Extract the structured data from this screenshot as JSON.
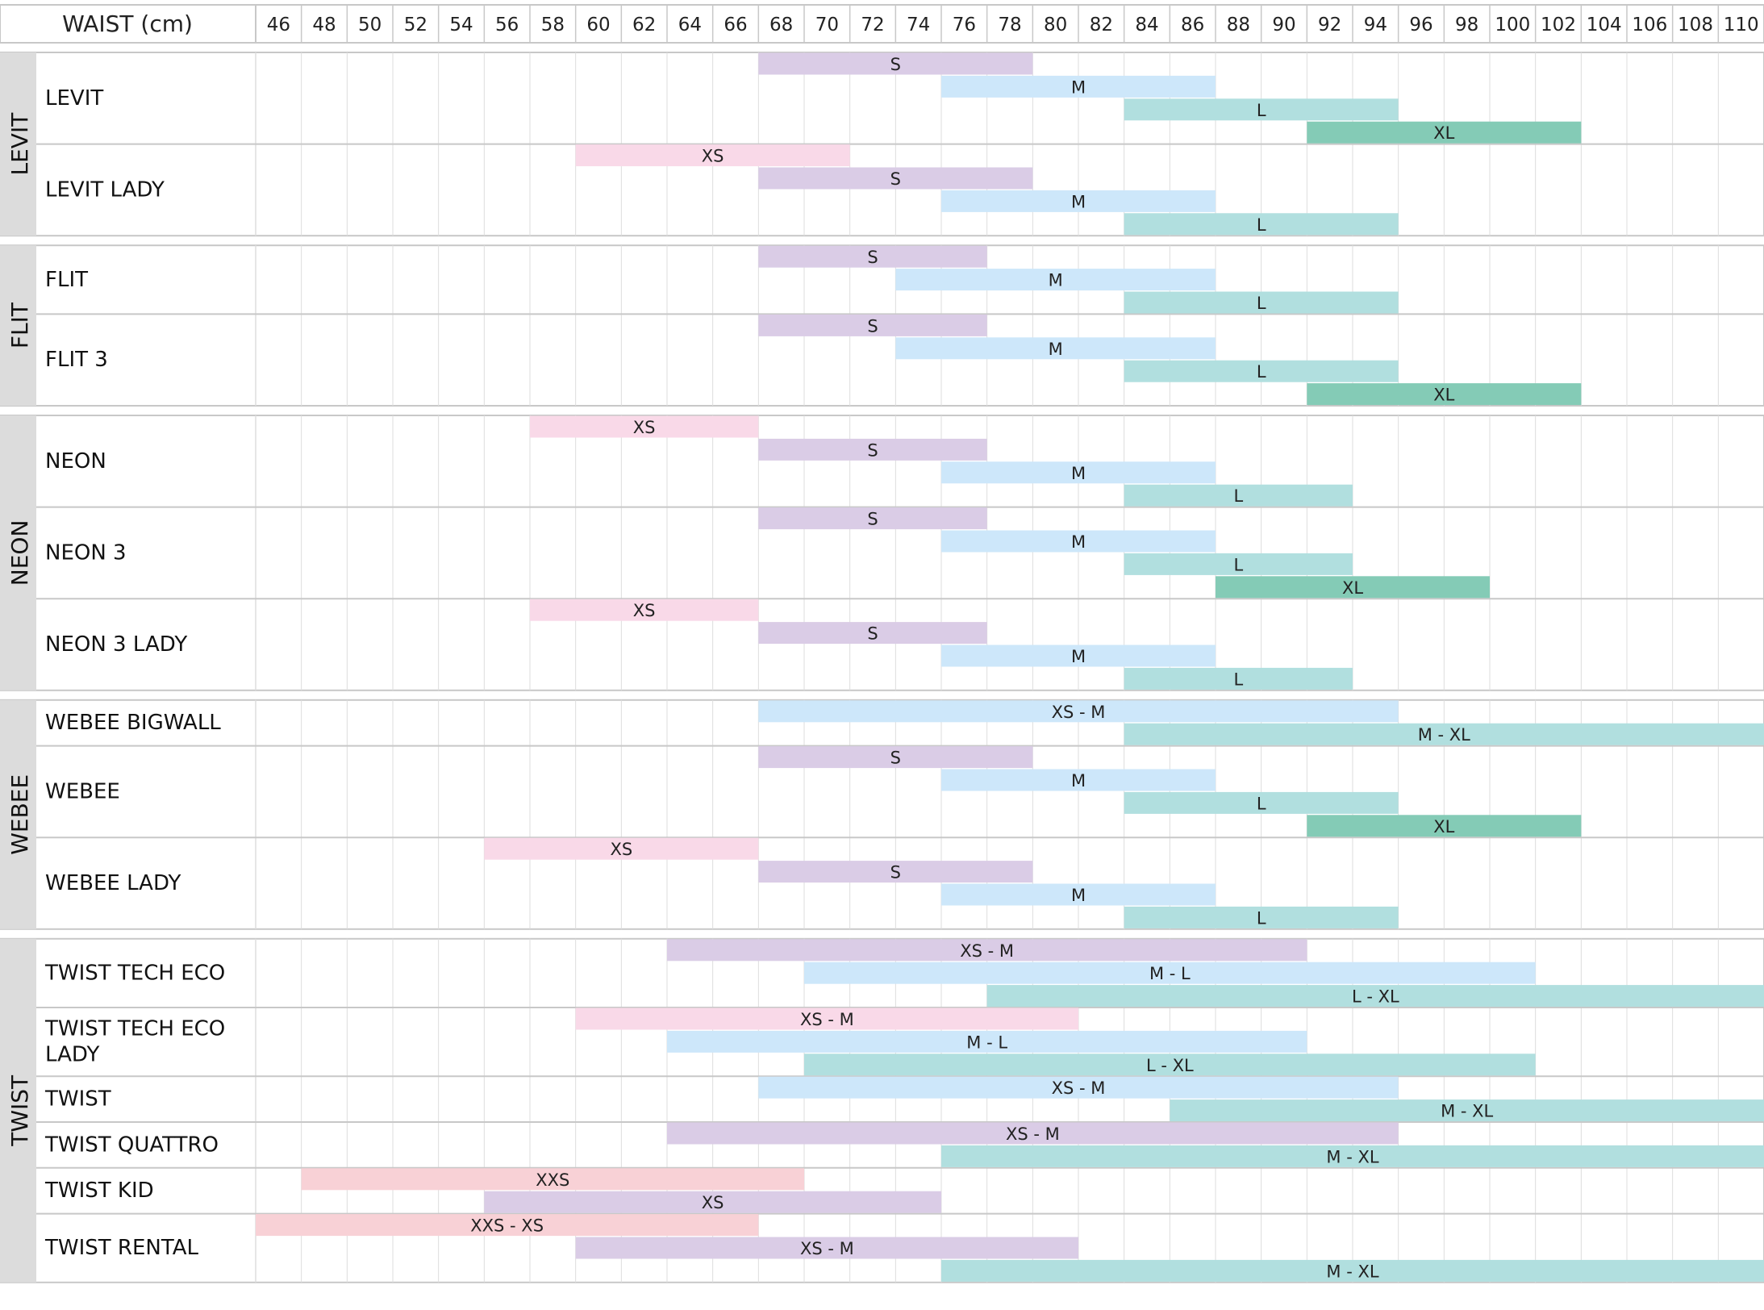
{
  "chart_data": {
    "type": "range-bar",
    "title": "WAIST (cm)",
    "x_min": 45,
    "x_max": 111,
    "ticks": [
      46,
      48,
      50,
      52,
      54,
      56,
      58,
      60,
      62,
      64,
      66,
      68,
      70,
      72,
      74,
      76,
      78,
      80,
      82,
      84,
      86,
      88,
      90,
      92,
      94,
      96,
      98,
      100,
      102,
      104,
      106,
      108,
      110
    ],
    "colors": {
      "XXS": "#f8d1d6",
      "XS": "#f9d9e8",
      "S": "#dacce6",
      "M": "#cde7fa",
      "L": "#b1dfdf",
      "XL": "#84cbb6",
      "grid": "#dddddd",
      "group_bg": "#dcdcdc",
      "border": "#c8c8c8"
    },
    "groups": [
      {
        "name": "LEVIT",
        "products": [
          {
            "name": "LEVIT",
            "bars": [
              {
                "label": "S",
                "from": 67,
                "to": 79,
                "color": "S"
              },
              {
                "label": "M",
                "from": 75,
                "to": 87,
                "color": "M"
              },
              {
                "label": "L",
                "from": 83,
                "to": 95,
                "color": "L"
              },
              {
                "label": "XL",
                "from": 91,
                "to": 103,
                "color": "XL"
              }
            ]
          },
          {
            "name": "LEVIT LADY",
            "bars": [
              {
                "label": "XS",
                "from": 59,
                "to": 71,
                "color": "XS"
              },
              {
                "label": "S",
                "from": 67,
                "to": 79,
                "color": "S"
              },
              {
                "label": "M",
                "from": 75,
                "to": 87,
                "color": "M"
              },
              {
                "label": "L",
                "from": 83,
                "to": 95,
                "color": "L"
              }
            ]
          }
        ]
      },
      {
        "name": "FLIT",
        "products": [
          {
            "name": "FLIT",
            "bars": [
              {
                "label": "S",
                "from": 67,
                "to": 77,
                "color": "S"
              },
              {
                "label": "M",
                "from": 73,
                "to": 87,
                "color": "M"
              },
              {
                "label": "L",
                "from": 83,
                "to": 95,
                "color": "L"
              }
            ]
          },
          {
            "name": "FLIT 3",
            "bars": [
              {
                "label": "S",
                "from": 67,
                "to": 77,
                "color": "S"
              },
              {
                "label": "M",
                "from": 73,
                "to": 87,
                "color": "M"
              },
              {
                "label": "L",
                "from": 83,
                "to": 95,
                "color": "L"
              },
              {
                "label": "XL",
                "from": 91,
                "to": 103,
                "color": "XL"
              }
            ]
          }
        ]
      },
      {
        "name": "NEON",
        "products": [
          {
            "name": "NEON",
            "bars": [
              {
                "label": "XS",
                "from": 57,
                "to": 67,
                "color": "XS"
              },
              {
                "label": "S",
                "from": 67,
                "to": 77,
                "color": "S"
              },
              {
                "label": "M",
                "from": 75,
                "to": 87,
                "color": "M"
              },
              {
                "label": "L",
                "from": 83,
                "to": 93,
                "color": "L"
              }
            ]
          },
          {
            "name": "NEON 3",
            "bars": [
              {
                "label": "S",
                "from": 67,
                "to": 77,
                "color": "S"
              },
              {
                "label": "M",
                "from": 75,
                "to": 87,
                "color": "M"
              },
              {
                "label": "L",
                "from": 83,
                "to": 93,
                "color": "L"
              },
              {
                "label": "XL",
                "from": 87,
                "to": 99,
                "color": "XL"
              }
            ]
          },
          {
            "name": "NEON 3 LADY",
            "bars": [
              {
                "label": "XS",
                "from": 57,
                "to": 67,
                "color": "XS"
              },
              {
                "label": "S",
                "from": 67,
                "to": 77,
                "color": "S"
              },
              {
                "label": "M",
                "from": 75,
                "to": 87,
                "color": "M"
              },
              {
                "label": "L",
                "from": 83,
                "to": 93,
                "color": "L"
              }
            ]
          }
        ]
      },
      {
        "name": "WEBEE",
        "products": [
          {
            "name": "WEBEE BIGWALL",
            "bars": [
              {
                "label": "XS - M",
                "from": 67,
                "to": 95,
                "color": "M"
              },
              {
                "label": "M - XL",
                "from": 83,
                "to": 111,
                "color": "L"
              }
            ]
          },
          {
            "name": "WEBEE",
            "bars": [
              {
                "label": "S",
                "from": 67,
                "to": 79,
                "color": "S"
              },
              {
                "label": "M",
                "from": 75,
                "to": 87,
                "color": "M"
              },
              {
                "label": "L",
                "from": 83,
                "to": 95,
                "color": "L"
              },
              {
                "label": "XL",
                "from": 91,
                "to": 103,
                "color": "XL"
              }
            ]
          },
          {
            "name": "WEBEE LADY",
            "bars": [
              {
                "label": "XS",
                "from": 55,
                "to": 67,
                "color": "XS"
              },
              {
                "label": "S",
                "from": 67,
                "to": 79,
                "color": "S"
              },
              {
                "label": "M",
                "from": 75,
                "to": 87,
                "color": "M"
              },
              {
                "label": "L",
                "from": 83,
                "to": 95,
                "color": "L"
              }
            ]
          }
        ]
      },
      {
        "name": "TWIST",
        "products": [
          {
            "name": "TWIST TECH ECO",
            "bars": [
              {
                "label": "XS - M",
                "from": 63,
                "to": 91,
                "color": "S"
              },
              {
                "label": "M - L",
                "from": 69,
                "to": 101,
                "color": "M"
              },
              {
                "label": "L - XL",
                "from": 77,
                "to": 111,
                "color": "L"
              }
            ]
          },
          {
            "name": "TWIST TECH ECO\nLADY",
            "bars": [
              {
                "label": "XS - M",
                "from": 59,
                "to": 81,
                "color": "XS"
              },
              {
                "label": "M - L",
                "from": 63,
                "to": 91,
                "color": "M"
              },
              {
                "label": "L - XL",
                "from": 69,
                "to": 101,
                "color": "L"
              }
            ]
          },
          {
            "name": "TWIST",
            "bars": [
              {
                "label": "XS  - M",
                "from": 67,
                "to": 95,
                "color": "M"
              },
              {
                "label": "M - XL",
                "from": 85,
                "to": 111,
                "color": "L"
              }
            ]
          },
          {
            "name": "TWIST QUATTRO",
            "bars": [
              {
                "label": "XS - M",
                "from": 63,
                "to": 95,
                "color": "S"
              },
              {
                "label": "M - XL",
                "from": 75,
                "to": 111,
                "color": "L"
              }
            ]
          },
          {
            "name": "TWIST KID",
            "bars": [
              {
                "label": "XXS",
                "from": 47,
                "to": 69,
                "color": "XXS"
              },
              {
                "label": "XS",
                "from": 55,
                "to": 75,
                "color": "S"
              }
            ]
          },
          {
            "name": "TWIST RENTAL",
            "bars": [
              {
                "label": "XXS  - XS",
                "from": 45,
                "to": 67,
                "color": "XXS"
              },
              {
                "label": "XS - M",
                "from": 59,
                "to": 81,
                "color": "S"
              },
              {
                "label": "M - XL",
                "from": 75,
                "to": 111,
                "color": "L"
              }
            ]
          }
        ]
      }
    ]
  }
}
